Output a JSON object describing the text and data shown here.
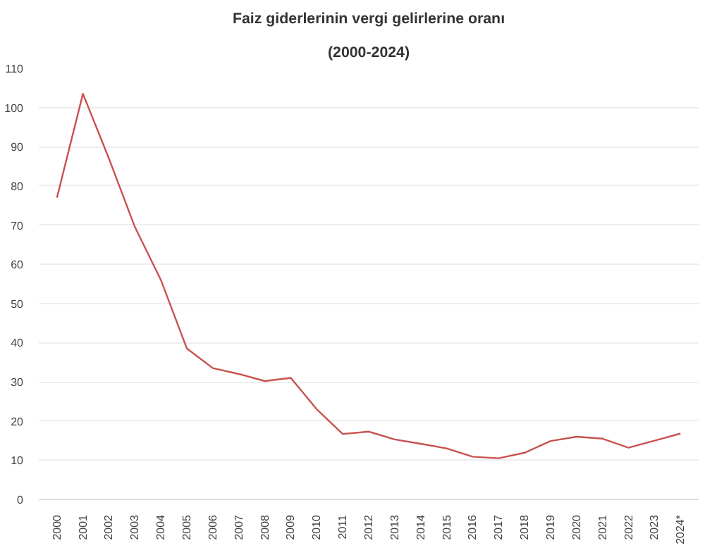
{
  "chart_data": {
    "type": "line",
    "title": "Faiz giderlerinin vergi gelirlerine oranı",
    "subtitle": "(2000-2024)",
    "categories": [
      "2000",
      "2001",
      "2002",
      "2003",
      "2004",
      "2005",
      "2006",
      "2007",
      "2008",
      "2009",
      "2010",
      "2011",
      "2012",
      "2013",
      "2014",
      "2015",
      "2016",
      "2017",
      "2018",
      "2019",
      "2020",
      "2021",
      "2022",
      "2023",
      "2024*"
    ],
    "series": [
      {
        "color": "#c8524e",
        "values": [
          77,
          103.5,
          87,
          69.5,
          56,
          38.5,
          33.5,
          32,
          30.2,
          31,
          23,
          16.7,
          17.3,
          15.3,
          14.2,
          13,
          10.9,
          10.5,
          11.9,
          14.9,
          16,
          15.5,
          13.2,
          15,
          16.8
        ]
      }
    ],
    "ylim": [
      0,
      110
    ],
    "yticks": [
      0,
      10,
      20,
      30,
      40,
      50,
      60,
      70,
      80,
      90,
      100,
      110
    ],
    "grid": "y",
    "marker": "none",
    "line_style": "solid"
  }
}
